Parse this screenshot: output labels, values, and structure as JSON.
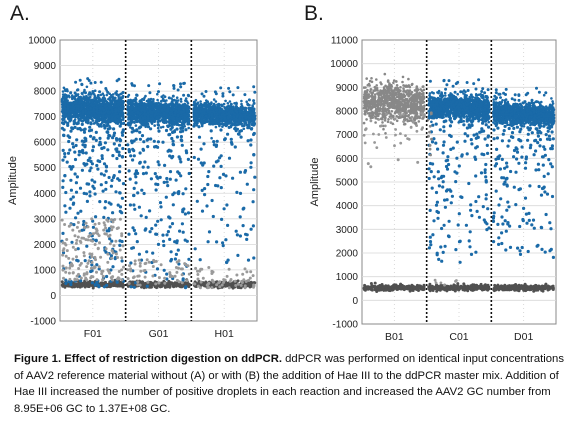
{
  "panels": [
    {
      "letter": "A.",
      "chart_data": {
        "type": "scatter",
        "title": "",
        "xlabel": "",
        "ylabel": "Amplitude",
        "ylim": [
          -1000,
          10000
        ],
        "yticks": [
          -1000,
          0,
          1000,
          2000,
          3000,
          4000,
          5000,
          6000,
          7000,
          8000,
          9000,
          10000
        ],
        "wells": [
          "F01",
          "G01",
          "H01"
        ],
        "grid": true,
        "series": [
          {
            "role": "positive",
            "color": "#1a6aa8",
            "well_band_centers": [
              7400,
              7250,
              7150
            ],
            "well_band_sd": [
              450,
              400,
              360
            ],
            "well_spread_min": [
              300,
              300,
              1200
            ],
            "well_spread_density": [
              1.0,
              0.75,
              0.35
            ]
          },
          {
            "role": "rain",
            "color": "#9a9a9a",
            "well_range": [
              [
                600,
                3000
              ],
              [
                400,
                1400
              ],
              [
                300,
                1100
              ]
            ]
          },
          {
            "role": "negative",
            "color": "#505050",
            "level": 430
          }
        ]
      }
    },
    {
      "letter": "B.",
      "chart_data": {
        "type": "scatter",
        "title": "",
        "xlabel": "",
        "ylabel": "Amplitude",
        "ylim": [
          -1000,
          11000
        ],
        "yticks": [
          -1000,
          0,
          1000,
          2000,
          3000,
          4000,
          5000,
          6000,
          7000,
          8000,
          9000,
          10000,
          11000
        ],
        "wells": [
          "B01",
          "C01",
          "D01"
        ],
        "grid": true,
        "series": [
          {
            "role": "B01-droplets",
            "color": "#8a8a8a",
            "level": 8350,
            "sd": 380
          },
          {
            "role": "positive",
            "color": "#1a6aa8",
            "well_band_centers": [
              8250,
              7950
            ],
            "well_band_sd": [
              420,
              400
            ],
            "well_spread_min": [
              1500,
              1800
            ],
            "well_spread_density": [
              0.6,
              0.55
            ]
          },
          {
            "role": "negative",
            "color": "#505050",
            "level": 530
          }
        ]
      }
    }
  ],
  "caption": {
    "bold": "Figure 1.  Effect of restriction digestion on ddPCR.",
    "text": " ddPCR was performed on identical input concentrations of AAV2 reference material without (A) or with (B) the addition of Hae III to the ddPCR master mix. Addition of Hae III increased the number of positive droplets in each reaction and increased the AAV2 GC number from 8.95E+06 GC to 1.37E+08  GC."
  },
  "colors": {
    "positive": "#1a6aa8",
    "negative": "#505050",
    "rain": "#9a9a9a",
    "grid": "#d9d9d9",
    "plot_border": "#888888"
  }
}
